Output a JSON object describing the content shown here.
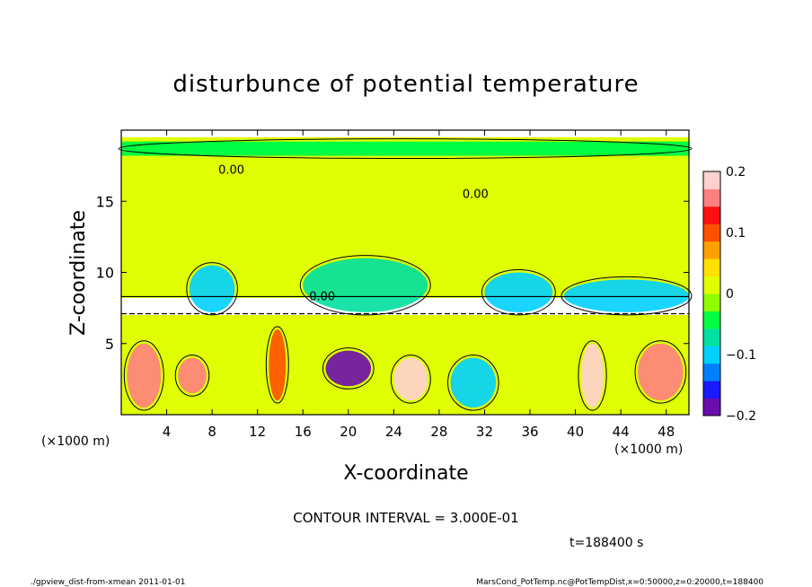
{
  "chart_data": {
    "type": "heatmap",
    "title": "disturbunce of potential temperature",
    "xlabel": "X-coordinate",
    "ylabel": "Z-coordinate",
    "x_unit": "(×1000 m)",
    "z_unit": "(×1000 m)",
    "xlim": [
      0,
      50
    ],
    "zlim": [
      0,
      20
    ],
    "x_ticks": [
      4,
      8,
      12,
      16,
      20,
      24,
      28,
      32,
      36,
      40,
      44,
      48
    ],
    "z_ticks": [
      5,
      10,
      15
    ],
    "colorbar": {
      "range": [
        -0.2,
        0.2
      ],
      "tick_values": [
        0.2,
        0.1,
        0,
        -0.1,
        -0.2
      ],
      "tick_labels": [
        "0.2",
        "0.1",
        "0",
        "−0.1",
        "−0.2"
      ],
      "colors": [
        "#6a0dad",
        "#1a1aff",
        "#0080ff",
        "#00d0ff",
        "#00e0a0",
        "#00ff40",
        "#90ff00",
        "#e0ff00",
        "#ffe000",
        "#ffa000",
        "#ff5000",
        "#ff1010",
        "#ff8080",
        "#ffd0d0"
      ]
    },
    "contour_interval_text": "CONTOUR INTERVAL = 3.000E-01",
    "contour_label": "0.00",
    "time_text": "t=188400 s",
    "regions": [
      {
        "x": [
          0,
          50
        ],
        "z": [
          8.2,
          19.5
        ],
        "value": 0.02
      },
      {
        "x": [
          0,
          50
        ],
        "z": [
          0,
          7
        ],
        "value": 0.0
      },
      {
        "x": [
          6,
          10
        ],
        "z": [
          7.2,
          10.5
        ],
        "value": -0.1
      },
      {
        "x": [
          16,
          27
        ],
        "z": [
          7.2,
          11
        ],
        "value": -0.08
      },
      {
        "x": [
          32,
          38
        ],
        "z": [
          7.2,
          10
        ],
        "value": -0.1
      },
      {
        "x": [
          39,
          50
        ],
        "z": [
          7.2,
          9.5
        ],
        "value": -0.1
      },
      {
        "x": [
          0,
          50
        ],
        "z": [
          18.2,
          19.2
        ],
        "value": -0.05
      },
      {
        "x": [
          0.5,
          3.5
        ],
        "z": [
          0.5,
          5
        ],
        "value": 0.15
      },
      {
        "x": [
          5,
          7.5
        ],
        "z": [
          1.5,
          4
        ],
        "value": 0.15
      },
      {
        "x": [
          13,
          14.5
        ],
        "z": [
          1,
          6
        ],
        "value": 0.1
      },
      {
        "x": [
          18,
          22
        ],
        "z": [
          2,
          4.5
        ],
        "value": -0.18
      },
      {
        "x": [
          24,
          27
        ],
        "z": [
          1,
          4
        ],
        "value": 0.18
      },
      {
        "x": [
          29,
          33
        ],
        "z": [
          0.5,
          4
        ],
        "value": -0.1
      },
      {
        "x": [
          40.5,
          42.5
        ],
        "z": [
          0.5,
          5
        ],
        "value": 0.18
      },
      {
        "x": [
          45.5,
          49.5
        ],
        "z": [
          1,
          5
        ],
        "value": 0.15
      }
    ]
  },
  "footer": {
    "left": "./gpview_dist-from-xmean  2011-01-01",
    "right": "MarsCond_PotTemp.nc@PotTempDist,x=0:50000,z=0:20000,t=188400"
  }
}
